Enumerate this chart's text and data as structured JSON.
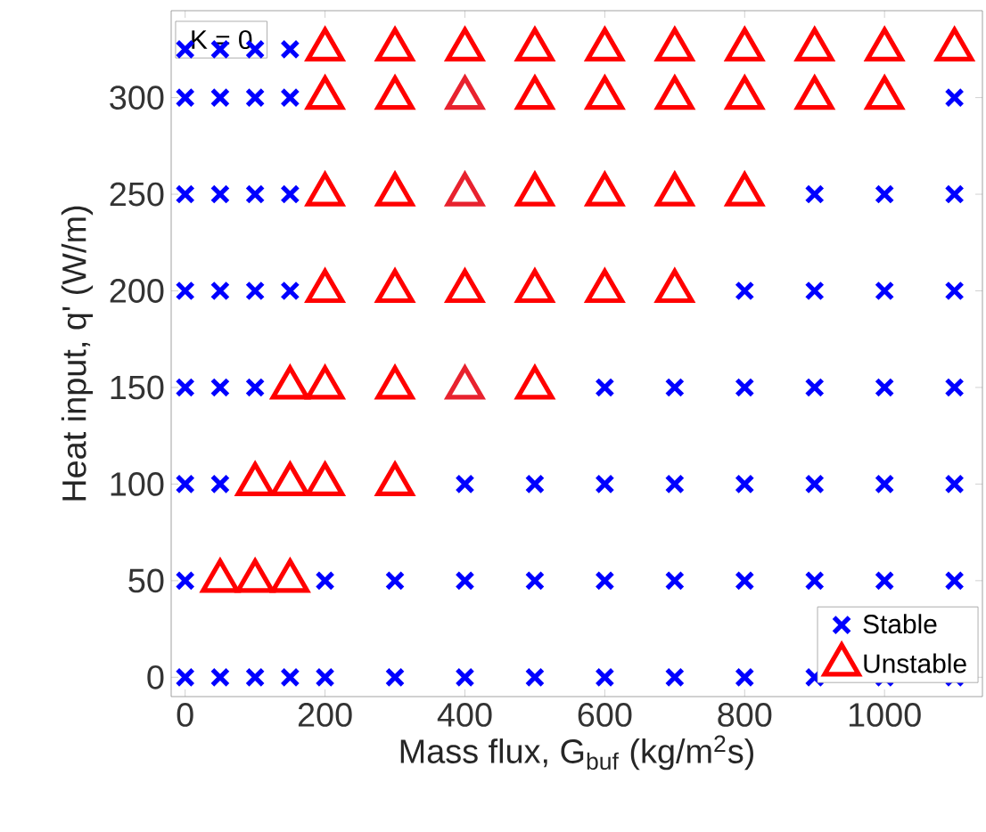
{
  "chart_data": {
    "type": "scatter",
    "xlabel": "Mass flux, G$_{buf}$ (kg/m$^{2}$s)",
    "ylabel": "Heat input, q' (W/m)",
    "annotations": [
      "K = 0"
    ],
    "xlim": [
      -20,
      1140
    ],
    "ylim": [
      -10,
      345
    ],
    "xticks": [
      0,
      200,
      400,
      600,
      800,
      1000
    ],
    "yticks": [
      0,
      50,
      100,
      150,
      200,
      250,
      300
    ],
    "grid": false,
    "legend": "bottom right",
    "series": [
      {
        "name": "Stable",
        "color": "#0000ff",
        "marker": "cross",
        "x": [
          0,
          50,
          100,
          150,
          200,
          300,
          400,
          500,
          600,
          700,
          800,
          900,
          1000,
          1100,
          0,
          200,
          300,
          400,
          500,
          600,
          700,
          800,
          900,
          1000,
          1100,
          0,
          50,
          400,
          500,
          600,
          700,
          800,
          900,
          1000,
          1100,
          0,
          50,
          100,
          600,
          700,
          800,
          900,
          1000,
          1100,
          0,
          50,
          100,
          150,
          800,
          900,
          1000,
          1100,
          0,
          50,
          100,
          150,
          900,
          1000,
          1100,
          0,
          50,
          100,
          150,
          1100,
          0,
          50,
          100,
          150
        ],
        "values": [
          0,
          0,
          0,
          0,
          0,
          0,
          0,
          0,
          0,
          0,
          0,
          0,
          0,
          0,
          50,
          50,
          50,
          50,
          50,
          50,
          50,
          50,
          50,
          50,
          50,
          100,
          100,
          100,
          100,
          100,
          100,
          100,
          100,
          100,
          100,
          150,
          150,
          150,
          150,
          150,
          150,
          150,
          150,
          150,
          200,
          200,
          200,
          200,
          200,
          200,
          200,
          200,
          250,
          250,
          250,
          250,
          250,
          250,
          250,
          300,
          300,
          300,
          300,
          300,
          325,
          325,
          325,
          325
        ]
      },
      {
        "name": "Unstable",
        "color": "#ff0000",
        "marker": "triangle",
        "x": [
          50,
          100,
          150,
          100,
          150,
          200,
          300,
          150,
          200,
          300,
          500,
          200,
          300,
          400,
          500,
          600,
          700,
          200,
          300,
          500,
          600,
          700,
          800,
          200,
          300,
          500,
          600,
          700,
          800,
          900,
          1000,
          200,
          300,
          400,
          500,
          600,
          700,
          800,
          900,
          1000,
          1100
        ],
        "values": [
          50,
          50,
          50,
          100,
          100,
          100,
          100,
          150,
          150,
          150,
          150,
          200,
          200,
          200,
          200,
          200,
          200,
          250,
          250,
          250,
          250,
          250,
          250,
          300,
          300,
          300,
          300,
          300,
          300,
          300,
          300,
          325,
          325,
          325,
          325,
          325,
          325,
          325,
          325,
          325,
          325
        ]
      },
      {
        "color": "#e8222e",
        "marker": "triangle",
        "x": [
          400,
          400,
          400
        ],
        "values": [
          150,
          250,
          300
        ]
      }
    ]
  }
}
